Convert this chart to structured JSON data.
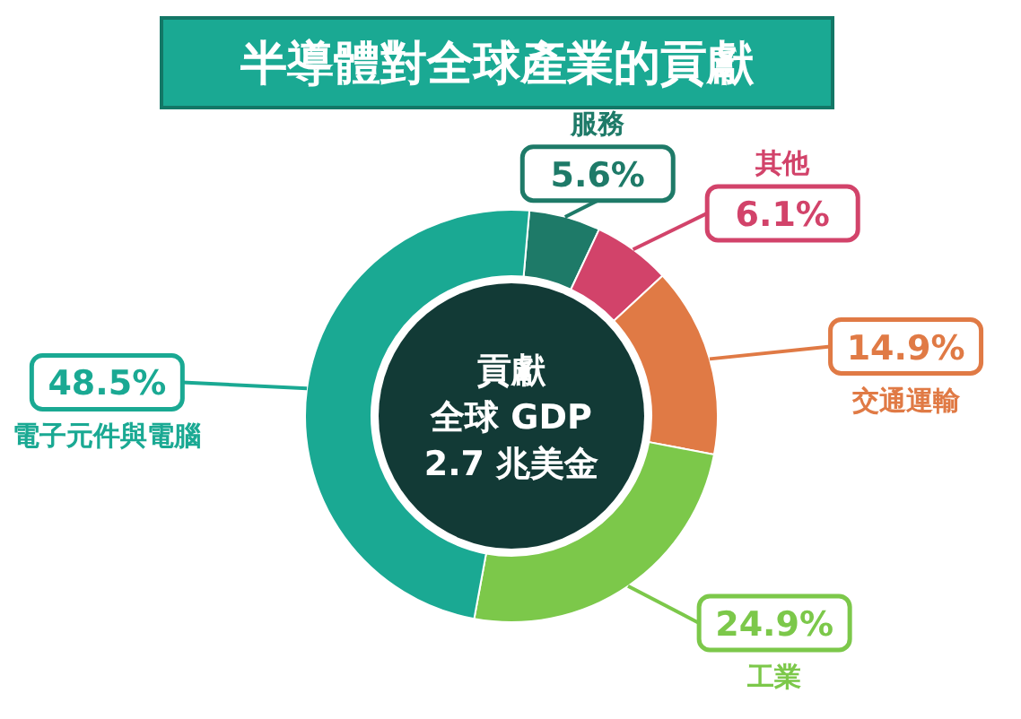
{
  "chart_data": {
    "type": "donut",
    "title": "半導體對全球產業的貢獻",
    "categories": [
      "服務",
      "其他",
      "交通運輸",
      "工業",
      "電子元件與電腦"
    ],
    "values": [
      5.6,
      6.1,
      14.9,
      24.9,
      48.5
    ],
    "value_labels": [
      "5.6%",
      "6.1%",
      "14.9%",
      "24.9%",
      "48.5%"
    ],
    "colors": [
      "#1e7a68",
      "#d2436a",
      "#e07a45",
      "#7cc84a",
      "#1aa993"
    ],
    "annotations": [
      "貢獻",
      "全球 GDP",
      "2.7 兆美金"
    ]
  }
}
